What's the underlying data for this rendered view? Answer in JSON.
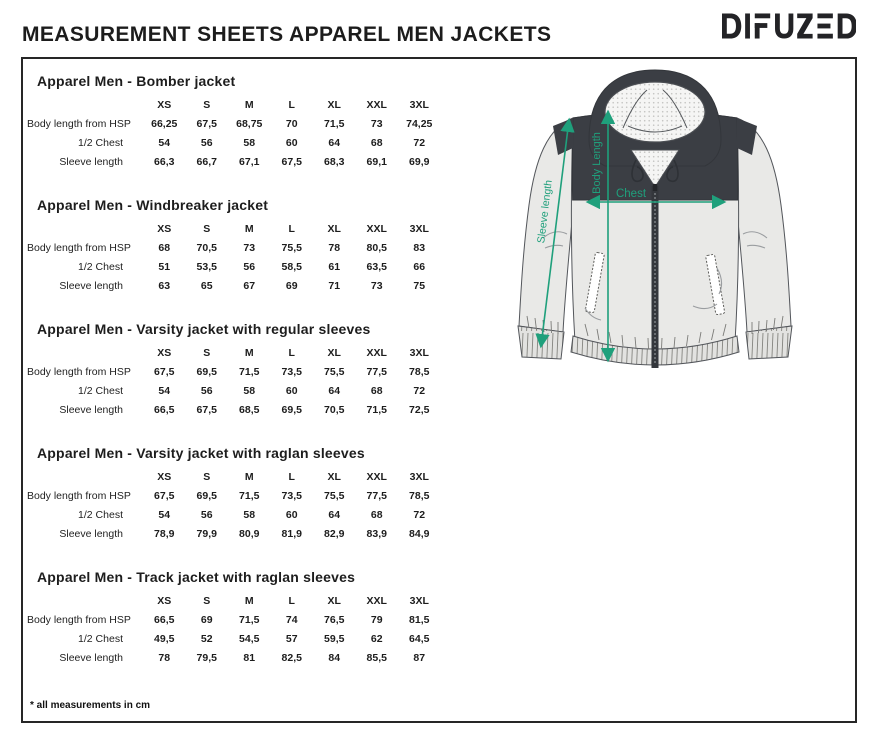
{
  "header": {
    "title": "MEASUREMENT SHEETS APPAREL MEN JACKETS",
    "logo": "DIFUZED"
  },
  "tables": [
    {
      "title": "Apparel Men - Bomber jacket",
      "sizes": [
        "XS",
        "S",
        "M",
        "L",
        "XL",
        "XXL",
        "3XL"
      ],
      "rows": [
        {
          "label": "Body length from HSP",
          "values": [
            "66,25",
            "67,5",
            "68,75",
            "70",
            "71,5",
            "73",
            "74,25"
          ]
        },
        {
          "label": "1/2 Chest",
          "values": [
            "54",
            "56",
            "58",
            "60",
            "64",
            "68",
            "72"
          ]
        },
        {
          "label": "Sleeve length",
          "values": [
            "66,3",
            "66,7",
            "67,1",
            "67,5",
            "68,3",
            "69,1",
            "69,9"
          ]
        }
      ]
    },
    {
      "title": "Apparel Men - Windbreaker jacket",
      "sizes": [
        "XS",
        "S",
        "M",
        "L",
        "XL",
        "XXL",
        "3XL"
      ],
      "rows": [
        {
          "label": "Body length from HSP",
          "values": [
            "68",
            "70,5",
            "73",
            "75,5",
            "78",
            "80,5",
            "83"
          ]
        },
        {
          "label": "1/2 Chest",
          "values": [
            "51",
            "53,5",
            "56",
            "58,5",
            "61",
            "63,5",
            "66"
          ]
        },
        {
          "label": "Sleeve length",
          "values": [
            "63",
            "65",
            "67",
            "69",
            "71",
            "73",
            "75"
          ]
        }
      ]
    },
    {
      "title": "Apparel Men - Varsity jacket with regular sleeves",
      "sizes": [
        "XS",
        "S",
        "M",
        "L",
        "XL",
        "XXL",
        "3XL"
      ],
      "rows": [
        {
          "label": "Body length from HSP",
          "values": [
            "67,5",
            "69,5",
            "71,5",
            "73,5",
            "75,5",
            "77,5",
            "78,5"
          ]
        },
        {
          "label": "1/2 Chest",
          "values": [
            "54",
            "56",
            "58",
            "60",
            "64",
            "68",
            "72"
          ]
        },
        {
          "label": "Sleeve length",
          "values": [
            "66,5",
            "67,5",
            "68,5",
            "69,5",
            "70,5",
            "71,5",
            "72,5"
          ]
        }
      ]
    },
    {
      "title": "Apparel Men - Varsity jacket with raglan sleeves",
      "sizes": [
        "XS",
        "S",
        "M",
        "L",
        "XL",
        "XXL",
        "3XL"
      ],
      "rows": [
        {
          "label": "Body length from HSP",
          "values": [
            "67,5",
            "69,5",
            "71,5",
            "73,5",
            "75,5",
            "77,5",
            "78,5"
          ]
        },
        {
          "label": "1/2 Chest",
          "values": [
            "54",
            "56",
            "58",
            "60",
            "64",
            "68",
            "72"
          ]
        },
        {
          "label": "Sleeve length",
          "values": [
            "78,9",
            "79,9",
            "80,9",
            "81,9",
            "82,9",
            "83,9",
            "84,9"
          ]
        }
      ]
    },
    {
      "title": "Apparel Men - Track jacket with raglan sleeves",
      "sizes": [
        "XS",
        "S",
        "M",
        "L",
        "XL",
        "XXL",
        "3XL"
      ],
      "rows": [
        {
          "label": "Body length from HSP",
          "values": [
            "66,5",
            "69",
            "71,5",
            "74",
            "76,5",
            "79",
            "81,5"
          ]
        },
        {
          "label": "1/2 Chest",
          "values": [
            "49,5",
            "52",
            "54,5",
            "57",
            "59,5",
            "62",
            "64,5"
          ]
        },
        {
          "label": "Sleeve length",
          "values": [
            "78",
            "79,5",
            "81",
            "82,5",
            "84",
            "85,5",
            "87"
          ]
        }
      ]
    }
  ],
  "diagram": {
    "labels": {
      "sleeve": "Sleeve length",
      "body": "Body Length",
      "chest": "Chest"
    },
    "colors": {
      "arrow": "#1fa07c",
      "jacket_dark": "#3b3e44",
      "jacket_light": "#e9e9e7"
    }
  },
  "footnote": "* all measurements in cm"
}
